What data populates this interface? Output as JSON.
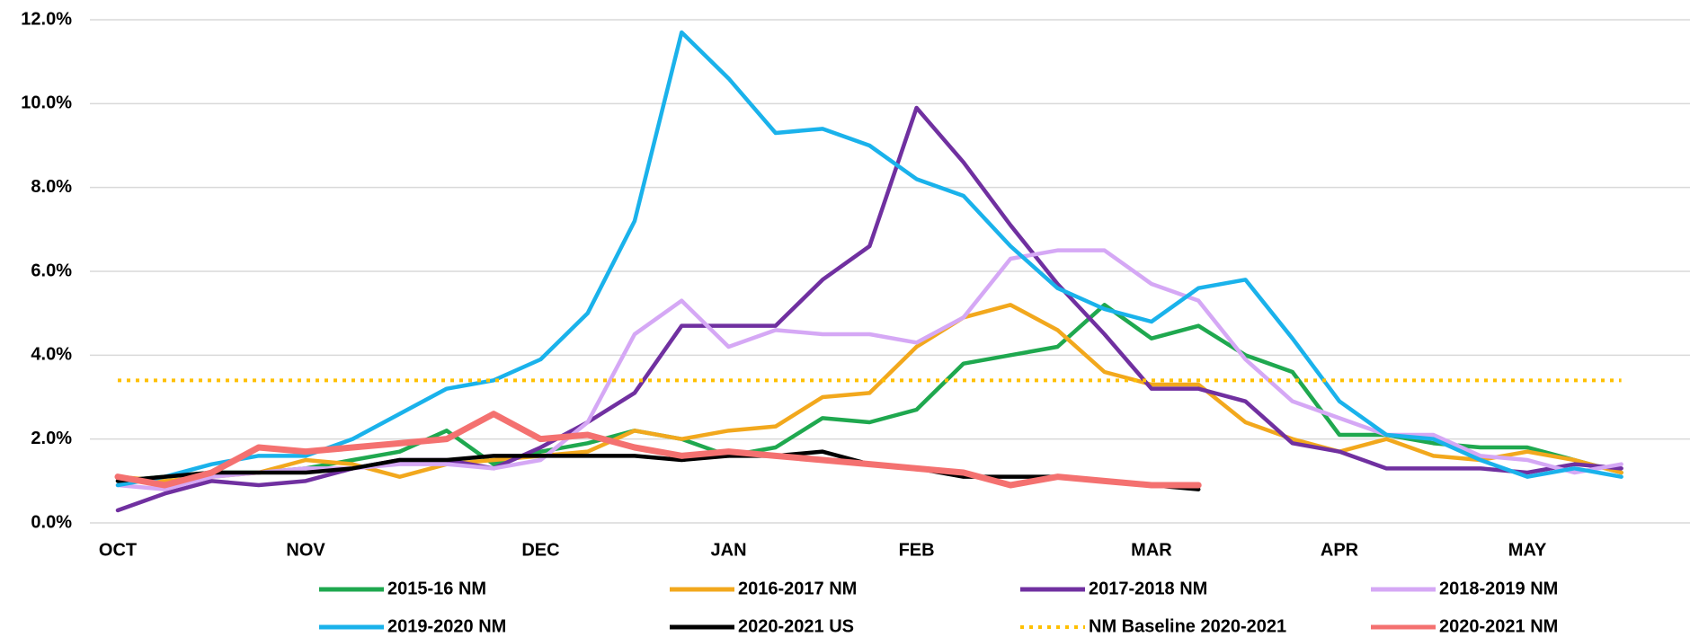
{
  "chart_data": {
    "type": "line",
    "categories": [
      "OCT",
      null,
      null,
      null,
      "NOV",
      null,
      null,
      null,
      null,
      "DEC",
      null,
      null,
      null,
      "JAN",
      null,
      null,
      null,
      "FEB",
      null,
      null,
      null,
      null,
      "MAR",
      null,
      null,
      null,
      "APR",
      null,
      null,
      null,
      "MAY",
      null,
      null
    ],
    "ylim": [
      0,
      12
    ],
    "yticks": [
      {
        "value": 0,
        "label": "0.0%"
      },
      {
        "value": 2,
        "label": "2.0%"
      },
      {
        "value": 4,
        "label": "4.0%"
      },
      {
        "value": 6,
        "label": "6.0%"
      },
      {
        "value": 8,
        "label": "8.0%"
      },
      {
        "value": 10,
        "label": "10.0%"
      },
      {
        "value": 12,
        "label": "12.0%"
      }
    ],
    "grid": true,
    "legend": "bottom",
    "series": [
      {
        "name": "2015-16 NM",
        "color": "#1fa84f",
        "values": [
          1.0,
          1.1,
          1.2,
          1.2,
          1.3,
          1.5,
          1.7,
          2.2,
          1.4,
          1.7,
          1.9,
          2.2,
          2.0,
          1.6,
          1.8,
          2.5,
          2.4,
          2.7,
          3.8,
          4.0,
          4.2,
          5.2,
          4.4,
          4.7,
          4.0,
          3.6,
          2.1,
          2.1,
          1.9,
          1.8,
          1.8,
          1.5,
          1.2
        ]
      },
      {
        "name": "2016-2017 NM",
        "color": "#f2a81d",
        "values": [
          1.1,
          1.0,
          1.1,
          1.2,
          1.5,
          1.4,
          1.1,
          1.4,
          1.5,
          1.6,
          1.7,
          2.2,
          2.0,
          2.2,
          2.3,
          3.0,
          3.1,
          4.2,
          4.9,
          5.2,
          4.6,
          3.6,
          3.3,
          3.3,
          2.4,
          2.0,
          1.7,
          2.0,
          1.6,
          1.5,
          1.7,
          1.5,
          1.2
        ]
      },
      {
        "name": "2017-2018 NM",
        "color": "#7030a0",
        "values": [
          0.3,
          0.7,
          1.0,
          0.9,
          1.0,
          1.3,
          1.5,
          1.5,
          1.3,
          1.8,
          2.4,
          3.1,
          4.7,
          4.7,
          4.7,
          5.8,
          6.6,
          9.9,
          8.6,
          7.1,
          5.7,
          4.5,
          3.2,
          3.2,
          2.9,
          1.9,
          1.7,
          1.3,
          1.3,
          1.3,
          1.2,
          1.4,
          1.3
        ]
      },
      {
        "name": "2018-2019 NM",
        "color": "#d5a8f5",
        "values": [
          0.9,
          0.8,
          1.1,
          1.2,
          1.3,
          1.3,
          1.4,
          1.4,
          1.3,
          1.5,
          2.4,
          4.5,
          5.3,
          4.2,
          4.6,
          4.5,
          4.5,
          4.3,
          4.9,
          6.3,
          6.5,
          6.5,
          5.7,
          5.3,
          3.9,
          2.9,
          2.5,
          2.1,
          2.1,
          1.6,
          1.5,
          1.2,
          1.4
        ]
      },
      {
        "name": "2019-2020 NM",
        "color": "#1ab2eb",
        "values": [
          0.9,
          1.1,
          1.4,
          1.6,
          1.6,
          2.0,
          2.6,
          3.2,
          3.4,
          3.9,
          5.0,
          7.2,
          11.7,
          10.6,
          9.3,
          9.4,
          9.0,
          8.2,
          7.8,
          6.6,
          5.6,
          5.1,
          4.8,
          5.6,
          5.8,
          4.4,
          2.9,
          2.1,
          2.0,
          1.5,
          1.1,
          1.3,
          1.1
        ]
      },
      {
        "name": "2020-2021 US",
        "color": "#000000",
        "values": [
          1.0,
          1.1,
          1.2,
          1.2,
          1.2,
          1.3,
          1.5,
          1.5,
          1.6,
          1.6,
          1.6,
          1.6,
          1.5,
          1.6,
          1.6,
          1.7,
          1.4,
          1.3,
          1.1,
          1.1,
          1.1,
          1.0,
          0.9,
          0.8,
          null,
          null,
          null,
          null,
          null,
          null,
          null,
          null,
          null
        ]
      },
      {
        "name": "NM Baseline 2020-2021",
        "color": "#ffc000",
        "line_style": "dotted",
        "values": [
          3.4,
          3.4,
          3.4,
          3.4,
          3.4,
          3.4,
          3.4,
          3.4,
          3.4,
          3.4,
          3.4,
          3.4,
          3.4,
          3.4,
          3.4,
          3.4,
          3.4,
          3.4,
          3.4,
          3.4,
          3.4,
          3.4,
          3.4,
          3.4,
          3.4,
          3.4,
          3.4,
          3.4,
          3.4,
          3.4,
          3.4,
          3.4,
          3.4
        ]
      },
      {
        "name": "2020-2021 NM",
        "color": "#f47170",
        "values": [
          1.1,
          0.9,
          1.2,
          1.8,
          1.7,
          1.8,
          1.9,
          2.0,
          2.6,
          2.0,
          2.1,
          1.8,
          1.6,
          1.7,
          1.6,
          1.5,
          1.4,
          1.3,
          1.2,
          0.9,
          1.1,
          1.0,
          0.9,
          0.9,
          null,
          null,
          null,
          null,
          null,
          null,
          null,
          null,
          null
        ]
      }
    ]
  }
}
